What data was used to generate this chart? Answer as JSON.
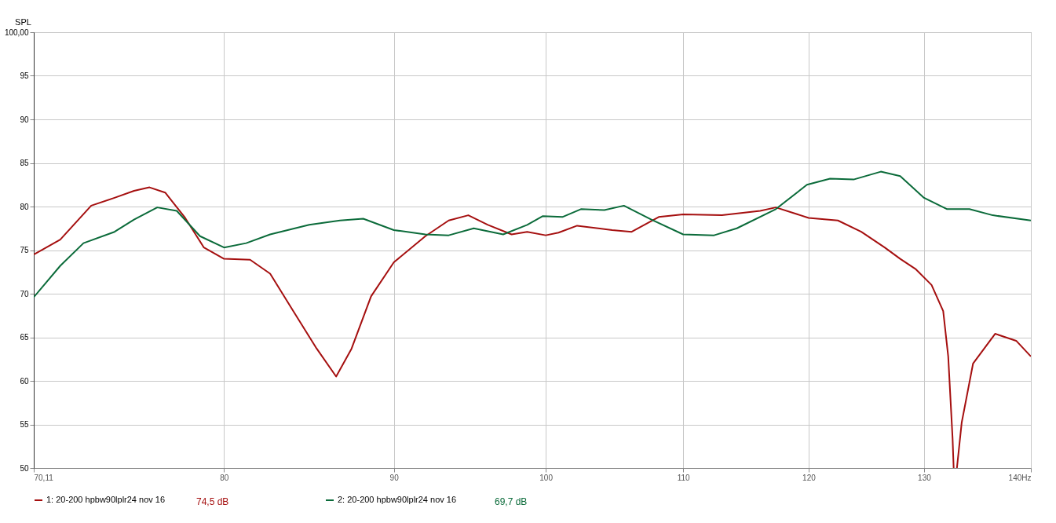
{
  "chart_data": {
    "type": "line",
    "ylabel": "SPL",
    "log": "x",
    "grid": true,
    "legend": "bottom",
    "marker": "none",
    "line_style": "solid",
    "xlim": [
      70.11,
      140
    ],
    "ylim": [
      50,
      100
    ],
    "xticks": [
      {
        "value": 70.11,
        "label": "70,11"
      },
      80,
      90,
      100,
      110,
      120,
      130,
      {
        "value": 140,
        "label": "140Hz"
      }
    ],
    "yticks": [
      50,
      55,
      60,
      65,
      70,
      75,
      80,
      85,
      90,
      95,
      {
        "value": 100,
        "label": "100,00"
      }
    ],
    "annotations": [
      "74,5 dB",
      "69,7 dB"
    ],
    "series": [
      {
        "name": "1: 20-200 hpbw90lplr24 nov 16",
        "color": "#a50f0f",
        "x": [
          70.11,
          71.41,
          72.96,
          74.15,
          75.16,
          75.97,
          76.8,
          77.84,
          78.89,
          80,
          81.46,
          82.6,
          83.94,
          85.31,
          86.47,
          87.4,
          88.59,
          90,
          91.99,
          93.49,
          94.77,
          96.07,
          97.66,
          98.72,
          100,
          100.89,
          102.2,
          104.71,
          106.14,
          108.15,
          110,
          113,
          116.04,
          117.3,
          120,
          122.46,
          124.46,
          126.5,
          127.87,
          129.27,
          130.68,
          131.74,
          132.2,
          132.6,
          132.7,
          132.85,
          133,
          133.44,
          134.5,
          136.57,
          138.58,
          140
        ],
        "values": [
          74.5,
          76.2,
          80.1,
          81,
          81.8,
          82.2,
          81.6,
          78.8,
          75.3,
          74,
          73.9,
          72.3,
          68,
          63.7,
          60.5,
          63.7,
          69.7,
          73.6,
          76.6,
          78.4,
          79,
          77.9,
          76.8,
          77.1,
          76.7,
          77,
          77.8,
          77.3,
          77.1,
          78.8,
          79.1,
          79,
          79.5,
          79.9,
          78.7,
          78.4,
          77.1,
          75.3,
          74,
          72.8,
          71,
          68,
          62.8,
          53.4,
          50,
          null,
          50,
          55.2,
          62,
          65.4,
          64.6,
          62.8
        ]
      },
      {
        "name": "2: 20-200 hpbw90lplr24 nov 16",
        "color": "#0b6b3a",
        "x": [
          70.11,
          71.41,
          72.57,
          74.15,
          75.16,
          76.38,
          77.42,
          78.68,
          80,
          81.24,
          82.6,
          84.87,
          86.7,
          88.11,
          90,
          91.99,
          93.49,
          95.13,
          97.09,
          98.72,
          99.8,
          101.16,
          102.47,
          104.15,
          105.57,
          107.6,
          110,
          112.38,
          114.17,
          117.3,
          119.86,
          121.8,
          123.8,
          126.16,
          127.87,
          130,
          132.1,
          134.16,
          136.34,
          140
        ],
        "values": [
          69.6,
          73.2,
          75.8,
          77.1,
          78.5,
          79.9,
          79.5,
          76.6,
          75.3,
          75.8,
          76.8,
          77.9,
          78.4,
          78.6,
          77.3,
          76.8,
          76.7,
          77.5,
          76.8,
          77.9,
          78.9,
          78.8,
          79.7,
          79.6,
          80.1,
          78.5,
          76.8,
          76.7,
          77.5,
          79.7,
          82.5,
          83.2,
          83.1,
          84,
          83.5,
          81,
          79.7,
          79.7,
          79,
          78.4
        ]
      }
    ]
  }
}
